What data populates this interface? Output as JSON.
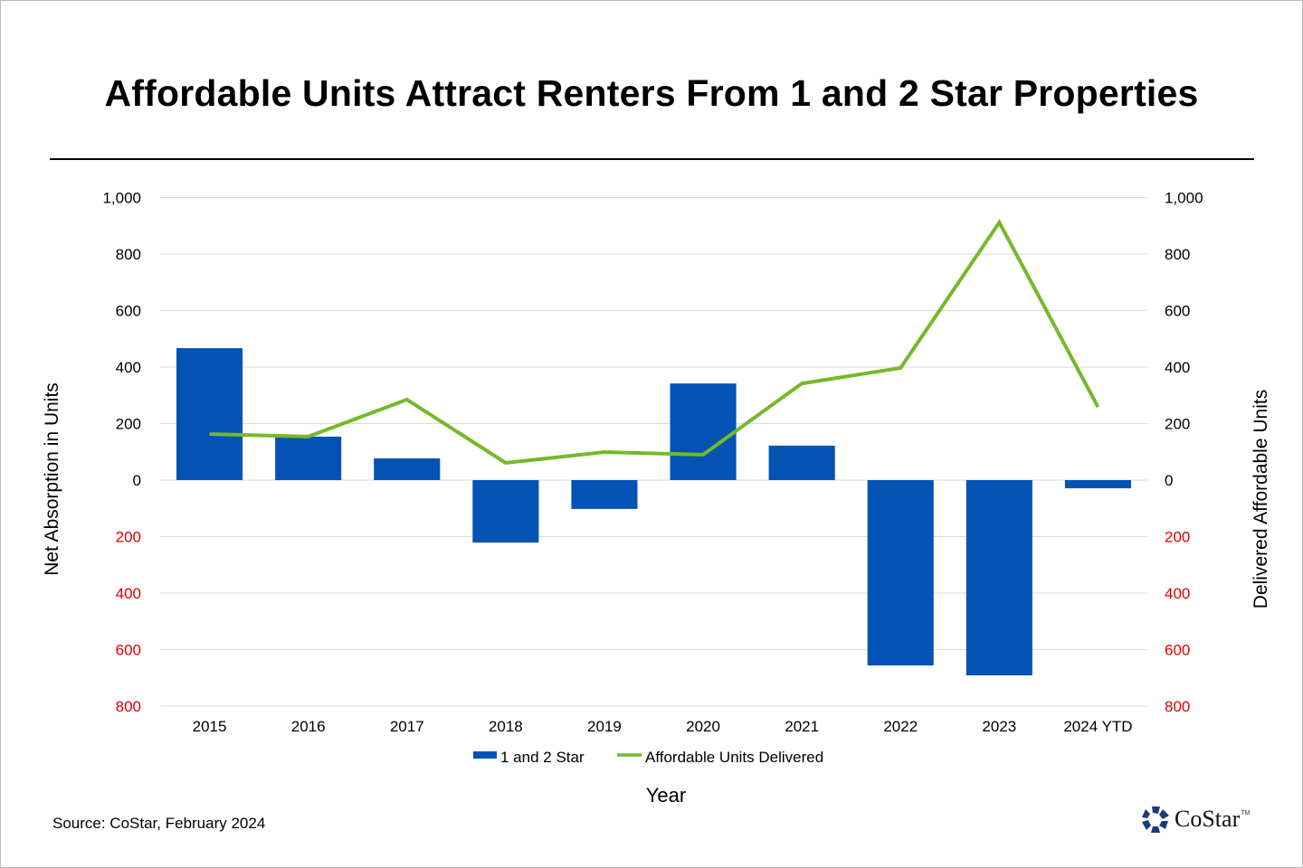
{
  "chart_data": {
    "type": "bar",
    "title": "Affordable Units Attract Renters From 1 and 2 Star Properties",
    "xlabel": "Year",
    "ylabel": "Net Absorption in Units",
    "y2label": "Delivered Affordable Units",
    "categories": [
      "2015",
      "2016",
      "2017",
      "2018",
      "2019",
      "2020",
      "2021",
      "2022",
      "2023",
      "2024 YTD"
    ],
    "ylim": [
      -800,
      1000
    ],
    "y2lim": [
      -800,
      1000
    ],
    "yticks": [
      1000,
      800,
      600,
      400,
      200,
      0,
      -200,
      -400,
      -600,
      -800
    ],
    "ytick_labels": [
      "1,000",
      "800",
      "600",
      "400",
      "200",
      "0",
      "200",
      "400",
      "600",
      "800"
    ],
    "grid": true,
    "legend_position": "bottom",
    "series": [
      {
        "name": "1 and 2 Star",
        "type": "bar",
        "axis": "left",
        "color": "#0453B4",
        "values": [
          467,
          154,
          77,
          -221,
          -102,
          342,
          122,
          -656,
          -691,
          -29
        ]
      },
      {
        "name": "Affordable Units Delivered",
        "type": "line",
        "axis": "right",
        "color": "#76B82A",
        "values": [
          163,
          154,
          285,
          61,
          99,
          90,
          342,
          397,
          912,
          259
        ]
      }
    ],
    "negative_tick_color": "#E00000",
    "positive_tick_color": "#000000"
  },
  "footer": {
    "source": "Source: CoStar, February 2024",
    "logo_text": "CoStar",
    "logo_tm": "TM"
  }
}
